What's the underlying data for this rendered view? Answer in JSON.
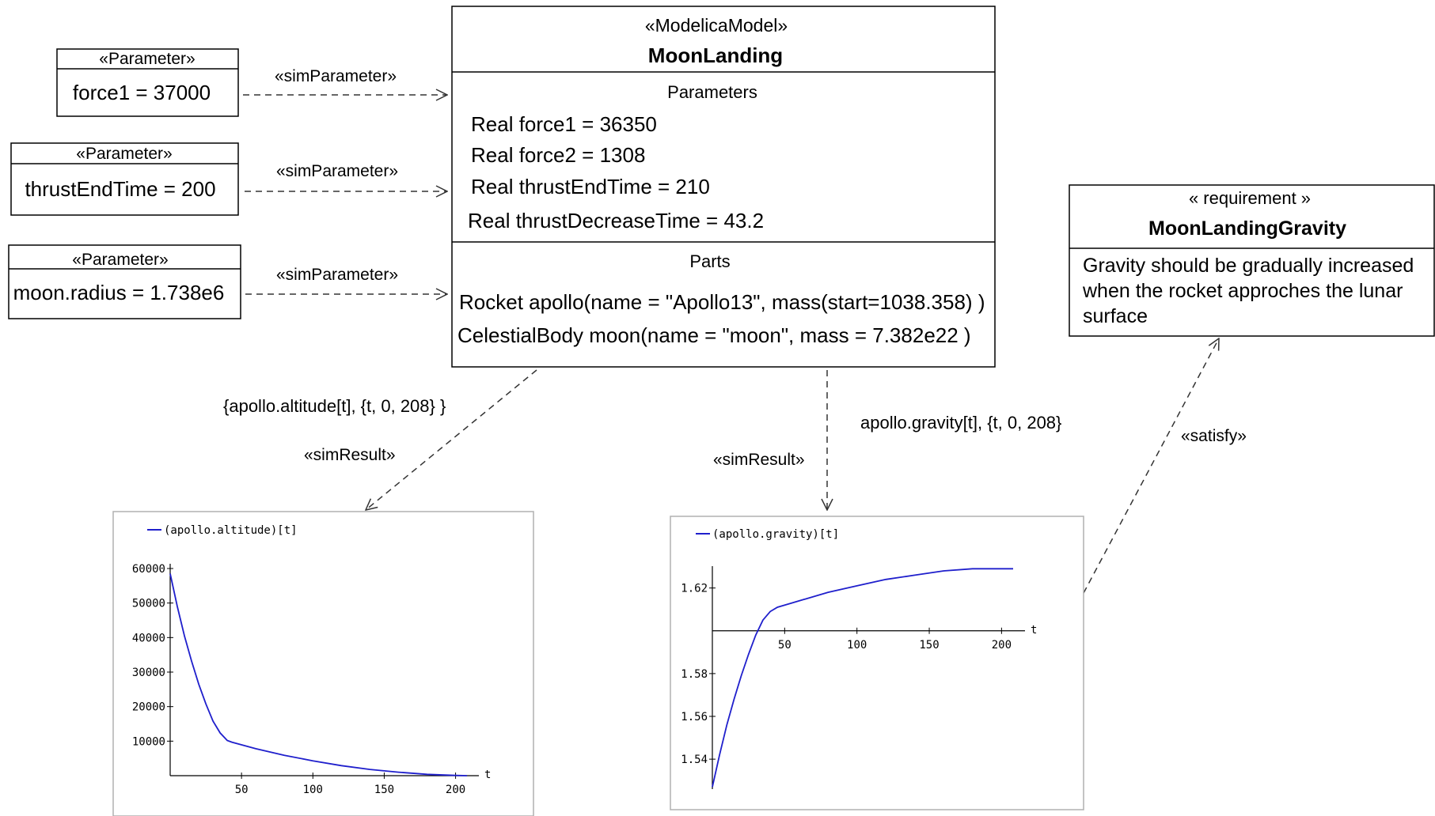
{
  "parameters": [
    {
      "stereotype": "«Parameter»",
      "value": "force1 = 37000"
    },
    {
      "stereotype": "«Parameter»",
      "value": "thrustEndTime = 200"
    },
    {
      "stereotype": "«Parameter»",
      "value": "moon.radius = 1.738e6"
    }
  ],
  "sim_parameter_label": "«simParameter»",
  "model": {
    "stereotype": "«ModelicaModel»",
    "name": "MoonLanding",
    "parameters_header": "Parameters",
    "parameters": [
      "Real force1 = 36350",
      "Real force2 = 1308",
      "Real thrustEndTime = 210",
      "Real thrustDecreaseTime = 43.2"
    ],
    "parts_header": "Parts",
    "parts": [
      "Rocket apollo(name = \"Apollo13\", mass(start=1038.358) )",
      "CelestialBody moon(name = \"moon\", mass = 7.382e22 )"
    ]
  },
  "requirement": {
    "stereotype": "« requirement »",
    "name": "MoonLandingGravity",
    "text_lines": [
      "Gravity should be gradually increased",
      "when the rocket approches the lunar",
      "surface"
    ]
  },
  "sim_results": [
    {
      "label": "«simResult»",
      "expression": "{apollo.altitude[t], {t, 0, 208} }"
    },
    {
      "label": "«simResult»",
      "expression": "apollo.gravity[t], {t, 0, 208}"
    }
  ],
  "satisfy_label": "«satisfy»",
  "colors": {
    "line": "#1f1fcc",
    "frame": "#b0b0b0"
  },
  "chart_data": [
    {
      "type": "line",
      "legend": "(apollo.altitude)[t]",
      "xlabel": "t",
      "x_ticks": [
        50,
        100,
        150,
        200
      ],
      "y_ticks": [
        10000,
        20000,
        30000,
        40000,
        50000,
        60000
      ],
      "xlim": [
        0,
        208
      ],
      "ylim": [
        0,
        60000
      ],
      "series": [
        {
          "x": [
            0,
            5,
            10,
            15,
            20,
            25,
            30,
            35,
            40,
            43.2,
            60,
            80,
            100,
            120,
            140,
            160,
            180,
            200,
            208
          ],
          "y": [
            58500,
            49000,
            40500,
            33200,
            26500,
            20800,
            15800,
            12400,
            10200,
            9700,
            7800,
            5900,
            4300,
            2900,
            1800,
            1000,
            400,
            80,
            0
          ]
        }
      ]
    },
    {
      "type": "line",
      "legend": "(apollo.gravity)[t]",
      "xlabel": "t",
      "x_ticks": [
        50,
        100,
        150,
        200
      ],
      "y_ticks": [
        1.54,
        1.56,
        1.58,
        1.62
      ],
      "xlim": [
        0,
        208
      ],
      "ylim": [
        1.526,
        1.628
      ],
      "x_axis_at": 1.6,
      "series": [
        {
          "x": [
            0,
            5,
            10,
            15,
            20,
            25,
            30,
            35,
            40,
            45,
            60,
            80,
            100,
            120,
            140,
            160,
            180,
            200,
            208
          ],
          "y": [
            1.527,
            1.542,
            1.556,
            1.568,
            1.579,
            1.589,
            1.598,
            1.605,
            1.609,
            1.611,
            1.614,
            1.618,
            1.621,
            1.624,
            1.626,
            1.628,
            1.629,
            1.629,
            1.629
          ]
        }
      ]
    }
  ]
}
